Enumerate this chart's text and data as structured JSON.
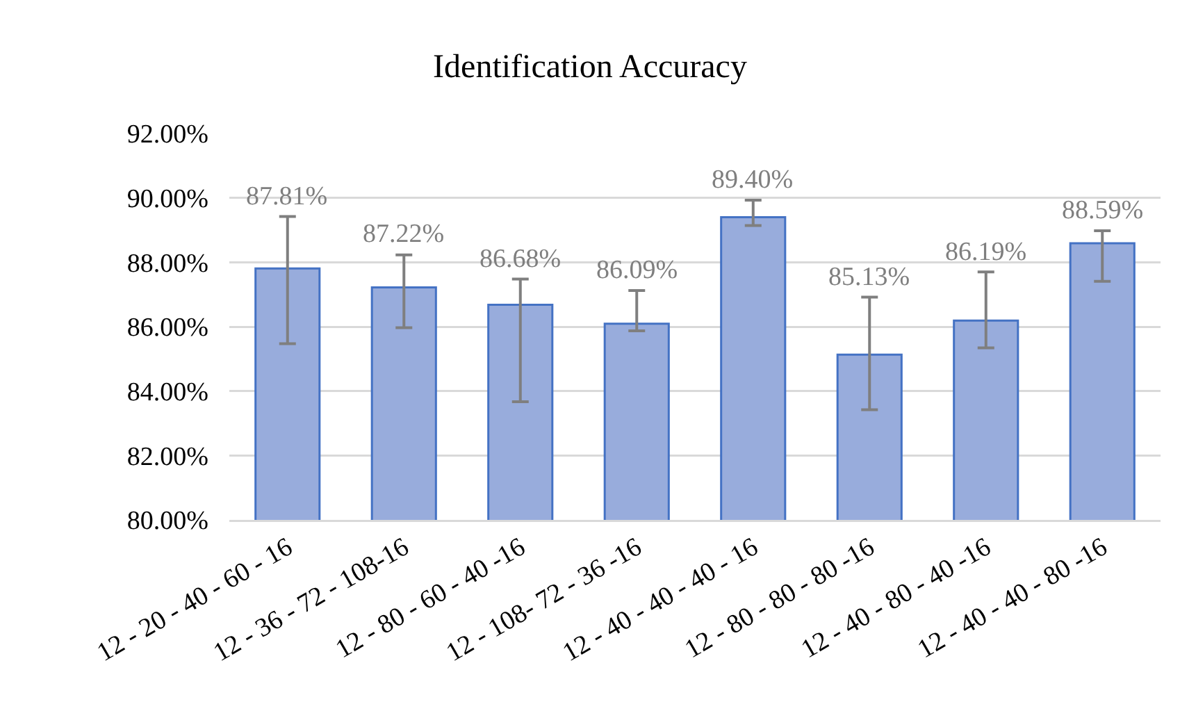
{
  "chart_data": {
    "type": "bar",
    "title": "Identification Accuracy",
    "categories": [
      "12 - 20 - 40 - 60 - 16",
      "12 - 36 - 72 - 108-16",
      "12 - 80 - 60 - 40 -16",
      "12 - 108- 72 - 36 -16",
      "12 - 40 - 40 - 40 - 16",
      "12 - 80 - 80 - 80 -16",
      "12 - 40 - 80 - 40 -16",
      "12 - 40 - 40 - 80 -16"
    ],
    "values": [
      87.81,
      87.22,
      86.68,
      86.09,
      89.4,
      85.13,
      86.19,
      88.59
    ],
    "value_labels": [
      "87.81%",
      "87.22%",
      "86.68%",
      "86.09%",
      "89.40%",
      "85.13%",
      "86.19%",
      "88.59%"
    ],
    "errors": [
      [
        85.47,
        89.42
      ],
      [
        85.97,
        88.23
      ],
      [
        83.67,
        87.48
      ],
      [
        85.87,
        87.12
      ],
      [
        89.14,
        89.93
      ],
      [
        83.42,
        86.92
      ],
      [
        85.34,
        87.7
      ],
      [
        87.41,
        88.98
      ]
    ],
    "color": "#98acdc",
    "ylim": [
      80,
      92
    ],
    "yticks": [
      {
        "value": 80,
        "label": "80.00%"
      },
      {
        "value": 82,
        "label": "82.00%"
      },
      {
        "value": 84,
        "label": "84.00%"
      },
      {
        "value": 86,
        "label": "86.00%"
      },
      {
        "value": 88,
        "label": "88.00%"
      },
      {
        "value": 90,
        "label": "90.00%"
      },
      {
        "value": 92,
        "label": "92.00%"
      }
    ],
    "grid": "y",
    "legend": false
  }
}
